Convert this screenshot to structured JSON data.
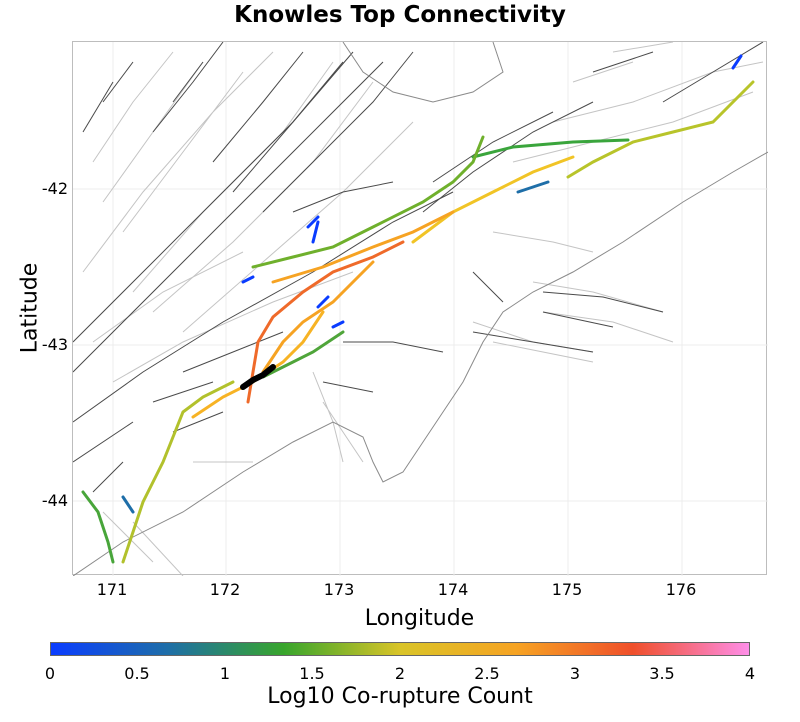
{
  "title": "Knowles Top Connectivity",
  "x_axis": {
    "label": "Longitude",
    "ticks": [
      "171",
      "172",
      "173",
      "174",
      "175",
      "176"
    ]
  },
  "y_axis": {
    "label": "Latitude",
    "ticks": [
      "-42",
      "-43",
      "-44"
    ]
  },
  "colorbar": {
    "label": "Log10 Co-rupture Count",
    "ticks": [
      "0",
      "0.5",
      "1",
      "1.5",
      "2",
      "2.5",
      "3",
      "3.5",
      "4"
    ],
    "colors": [
      "#0a3cff",
      "#1e6ea8",
      "#38a52c",
      "#d9c428",
      "#f6a323",
      "#ef4f2a",
      "#fe8ee8"
    ]
  },
  "colors": {
    "background_fault": "#4a4a4a",
    "fault_outline": "#bdbdbd",
    "coast": "#8a8a8a",
    "highlight": "#000000"
  }
}
